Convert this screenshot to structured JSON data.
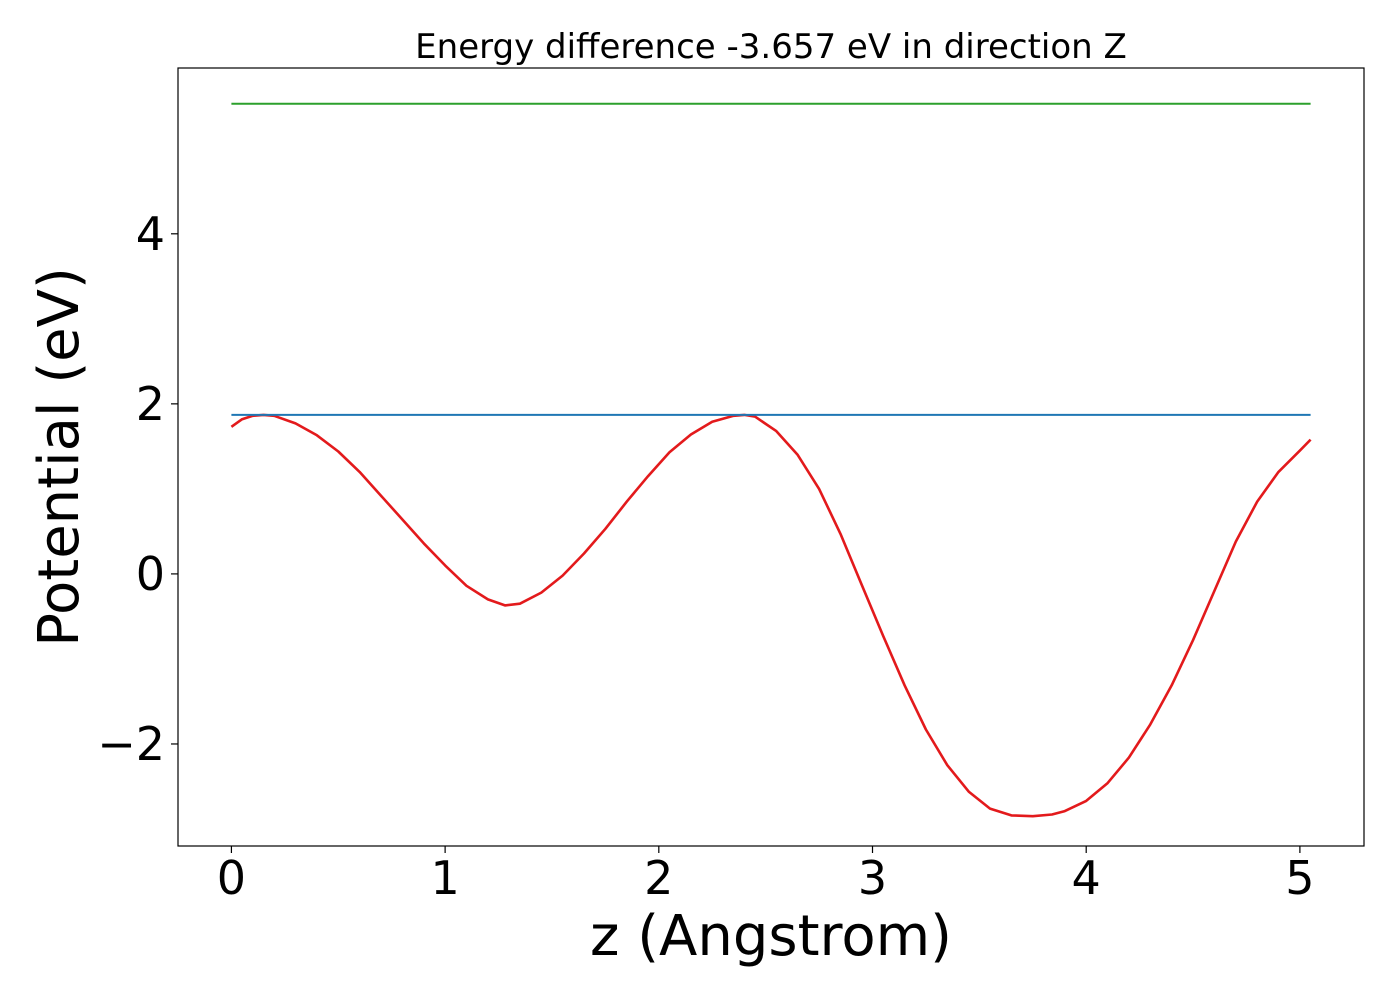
{
  "chart_data": {
    "type": "line",
    "title": "Energy difference -3.657 eV in direction Z",
    "xlabel": "z (Angstrom)",
    "ylabel": "Potential (eV)",
    "xlim": [
      -0.25,
      5.3
    ],
    "ylim": [
      -3.2,
      5.95
    ],
    "xticks": [
      0,
      1,
      2,
      3,
      4,
      5
    ],
    "xtick_labels": [
      "0",
      "1",
      "2",
      "3",
      "4",
      "5"
    ],
    "yticks": [
      -2,
      0,
      2,
      4
    ],
    "ytick_labels": [
      "−2",
      "0",
      "2",
      "4"
    ],
    "grid": false,
    "legend": "none",
    "series": [
      {
        "color": "#e31a1c",
        "x": [
          0.0,
          0.05,
          0.1,
          0.15,
          0.2,
          0.3,
          0.4,
          0.5,
          0.6,
          0.7,
          0.8,
          0.9,
          1.0,
          1.1,
          1.2,
          1.28,
          1.35,
          1.45,
          1.55,
          1.65,
          1.75,
          1.85,
          1.95,
          2.05,
          2.15,
          2.25,
          2.35,
          2.4,
          2.45,
          2.55,
          2.65,
          2.75,
          2.85,
          2.95,
          3.05,
          3.15,
          3.25,
          3.35,
          3.45,
          3.55,
          3.65,
          3.75,
          3.84,
          3.9,
          4.0,
          4.1,
          4.2,
          4.3,
          4.4,
          4.5,
          4.6,
          4.7,
          4.8,
          4.9,
          5.0,
          5.05
        ],
        "y": [
          1.73,
          1.82,
          1.86,
          1.87,
          1.86,
          1.77,
          1.63,
          1.44,
          1.2,
          0.92,
          0.64,
          0.36,
          0.1,
          -0.14,
          -0.3,
          -0.37,
          -0.35,
          -0.22,
          -0.02,
          0.24,
          0.53,
          0.85,
          1.15,
          1.43,
          1.64,
          1.79,
          1.86,
          1.87,
          1.85,
          1.68,
          1.4,
          1.0,
          0.47,
          -0.13,
          -0.73,
          -1.31,
          -1.83,
          -2.25,
          -2.56,
          -2.76,
          -2.84,
          -2.85,
          -2.83,
          -2.79,
          -2.67,
          -2.46,
          -2.16,
          -1.77,
          -1.31,
          -0.78,
          -0.2,
          0.38,
          0.85,
          1.2,
          1.45,
          1.58
        ]
      },
      {
        "color": "#1f77b4",
        "x": [
          0.0,
          5.05
        ],
        "y": [
          1.87,
          1.87
        ]
      },
      {
        "color": "#2ca02c",
        "x": [
          0.0,
          5.05
        ],
        "y": [
          5.53,
          5.53
        ]
      }
    ]
  }
}
